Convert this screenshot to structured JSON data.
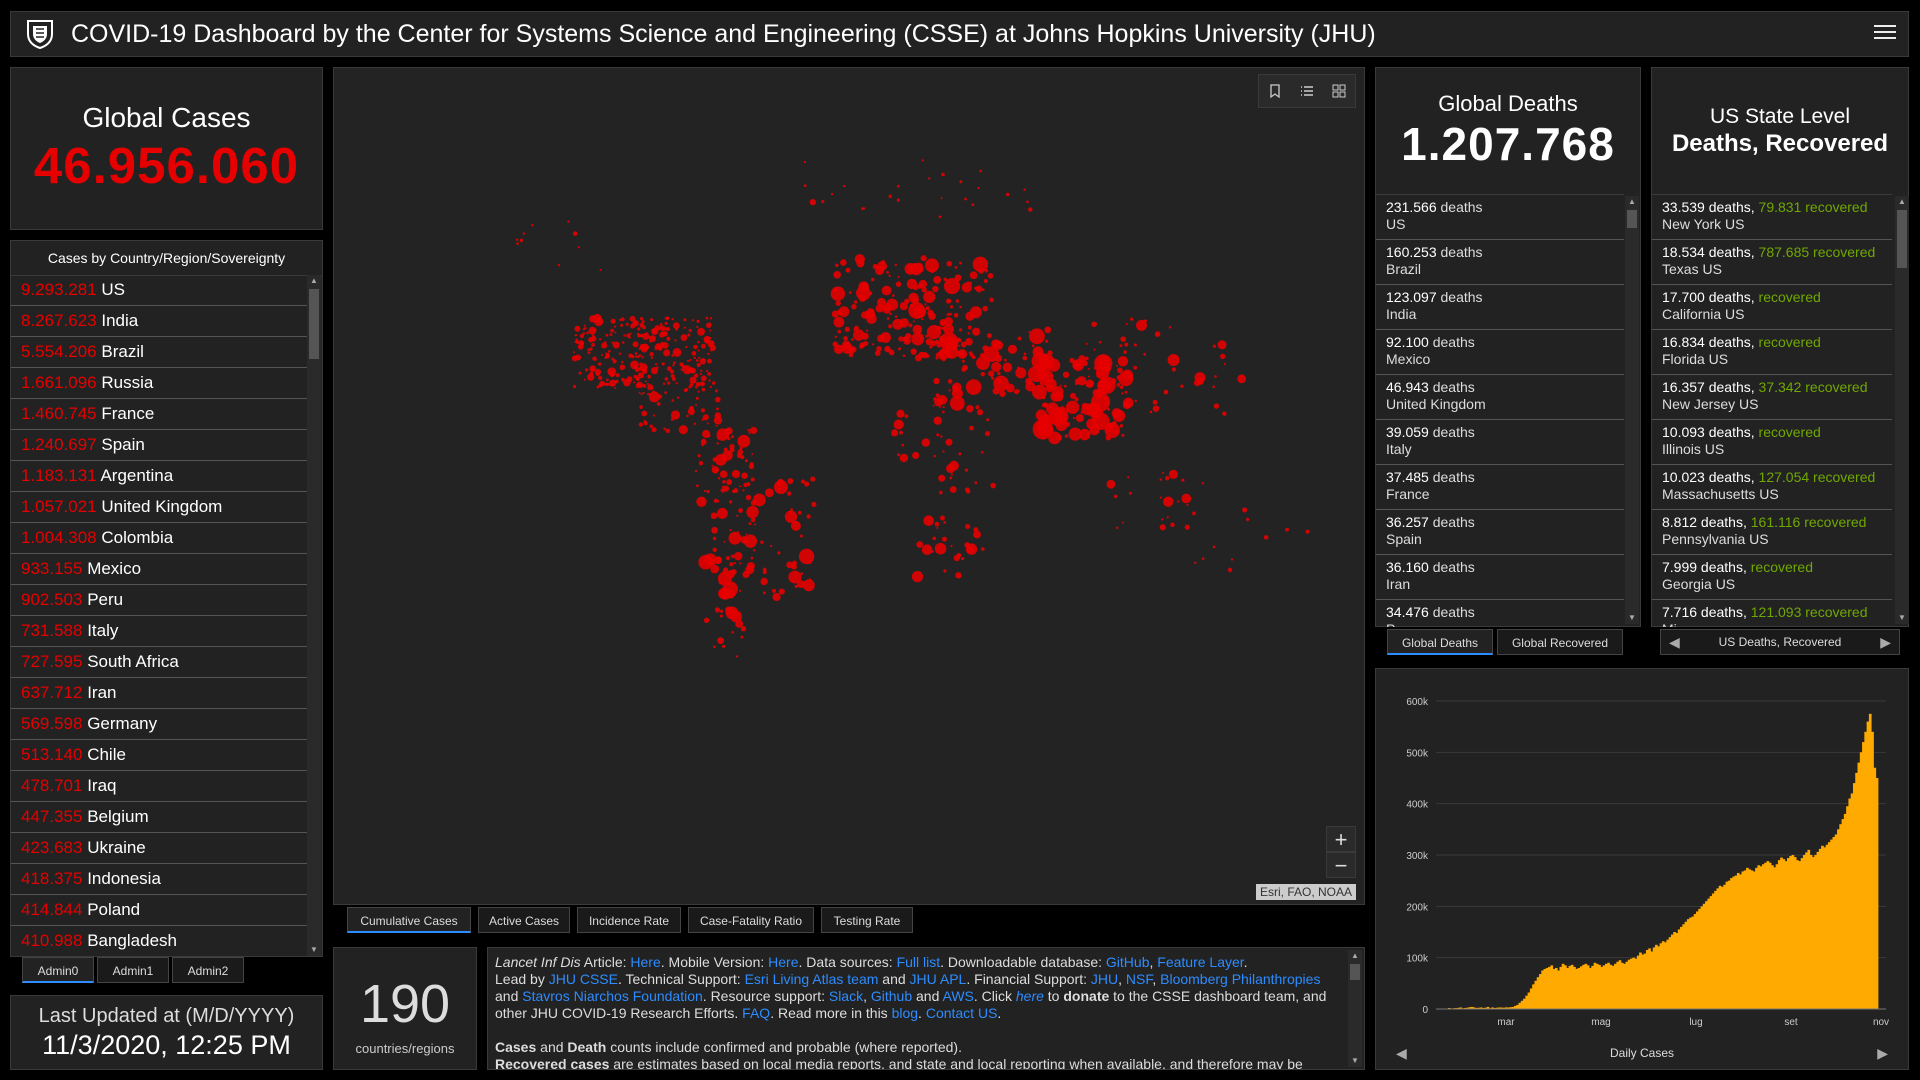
{
  "header": {
    "title": "COVID-19 Dashboard by the Center for Systems Science and Engineering (CSSE) at Johns Hopkins University (JHU)"
  },
  "global_cases": {
    "title": "Global Cases",
    "value": "46.956.060"
  },
  "country_list": {
    "heading": "Cases by Country/Region/Sovereignty",
    "rows": [
      {
        "num": "9.293.281",
        "name": "US"
      },
      {
        "num": "8.267.623",
        "name": "India"
      },
      {
        "num": "5.554.206",
        "name": "Brazil"
      },
      {
        "num": "1.661.096",
        "name": "Russia"
      },
      {
        "num": "1.460.745",
        "name": "France"
      },
      {
        "num": "1.240.697",
        "name": "Spain"
      },
      {
        "num": "1.183.131",
        "name": "Argentina"
      },
      {
        "num": "1.057.021",
        "name": "United Kingdom"
      },
      {
        "num": "1.004.308",
        "name": "Colombia"
      },
      {
        "num": "933.155",
        "name": "Mexico"
      },
      {
        "num": "902.503",
        "name": "Peru"
      },
      {
        "num": "731.588",
        "name": "Italy"
      },
      {
        "num": "727.595",
        "name": "South Africa"
      },
      {
        "num": "637.712",
        "name": "Iran"
      },
      {
        "num": "569.598",
        "name": "Germany"
      },
      {
        "num": "513.140",
        "name": "Chile"
      },
      {
        "num": "478.701",
        "name": "Iraq"
      },
      {
        "num": "447.355",
        "name": "Belgium"
      },
      {
        "num": "423.683",
        "name": "Ukraine"
      },
      {
        "num": "418.375",
        "name": "Indonesia"
      },
      {
        "num": "414.844",
        "name": "Poland"
      },
      {
        "num": "410.988",
        "name": "Bangladesh"
      }
    ]
  },
  "admin_tabs": [
    "Admin0",
    "Admin1",
    "Admin2"
  ],
  "last_updated": {
    "label": "Last Updated at (M/D/YYYY)",
    "value": "11/3/2020, 12:25 PM"
  },
  "map": {
    "attribution": "Esri, FAO, NOAA",
    "tabs": [
      "Cumulative Cases",
      "Active Cases",
      "Incidence Rate",
      "Case-Fatality Ratio",
      "Testing Rate"
    ],
    "zoom_in": "+",
    "zoom_out": "−",
    "dot_color": "#e60000"
  },
  "countries_count": {
    "value": "190",
    "label": "countries/regions"
  },
  "info": {
    "l1_a": "Lancet Inf Dis",
    "l1_b": " Article: ",
    "l1_link1": "Here",
    "l1_c": ". Mobile Version: ",
    "l1_link2": "Here",
    "l1_d": ". Data sources: ",
    "l1_link3": "Full list",
    "l1_e": ". Downloadable database: ",
    "l1_link4": "GitHub",
    "l1_f": ", ",
    "l1_link5": "Feature Layer",
    "l1_g": ".",
    "l2_a": "Lead by ",
    "l2_link1": "JHU CSSE",
    "l2_b": ". Technical Support: ",
    "l2_link2": "Esri Living Atlas team",
    "l2_c": " and ",
    "l2_link3": "JHU APL",
    "l2_d": ". Financial Support: ",
    "l2_link4": "JHU",
    "l2_e": ", ",
    "l2_link5": "NSF",
    "l2_f": ", ",
    "l2_link6": "Bloomberg Philanthropies",
    "l3_a": "and ",
    "l3_link1": "Stavros Niarchos Foundation",
    "l3_b": ". Resource support: ",
    "l3_link2": "Slack",
    "l3_c": ", ",
    "l3_link3": "Github",
    "l3_d": " and ",
    "l3_link4": "AWS",
    "l3_e": ". Click ",
    "l3_link5": "here",
    "l3_f": " to ",
    "l3_g": "donate",
    "l3_h": " to the CSSE dashboard team, and",
    "l4_a": "other JHU COVID-19 Research Efforts. ",
    "l4_link1": "FAQ",
    "l4_b": ". Read more in this ",
    "l4_link2": "blog",
    "l4_c": ". ",
    "l4_link3": "Contact US",
    "l4_d": ".",
    "l5_a": "Cases",
    "l5_b": " and ",
    "l5_c": "Death",
    "l5_d": " counts include confirmed and probable (where reported).",
    "l6_a": "Recovered cases",
    "l6_b": " are estimates based on local media reports, and state and local reporting when available, and therefore may be"
  },
  "global_deaths": {
    "title": "Global Deaths",
    "value": "1.207.768",
    "rows": [
      {
        "num": "231.566",
        "unit": " deaths",
        "name": "US"
      },
      {
        "num": "160.253",
        "unit": " deaths",
        "name": "Brazil"
      },
      {
        "num": "123.097",
        "unit": " deaths",
        "name": "India"
      },
      {
        "num": "92.100",
        "unit": " deaths",
        "name": "Mexico"
      },
      {
        "num": "46.943",
        "unit": " deaths",
        "name": "United Kingdom"
      },
      {
        "num": "39.059",
        "unit": " deaths",
        "name": "Italy"
      },
      {
        "num": "37.485",
        "unit": " deaths",
        "name": "France"
      },
      {
        "num": "36.257",
        "unit": " deaths",
        "name": "Spain"
      },
      {
        "num": "36.160",
        "unit": " deaths",
        "name": "Iran"
      },
      {
        "num": "34.476",
        "unit": " deaths",
        "name": "P..."
      }
    ],
    "tabs": [
      "Global Deaths",
      "Global Recovered"
    ]
  },
  "us_state": {
    "title1": "US State Level",
    "title2": "Deaths, Recovered",
    "rows": [
      {
        "deaths": "33.539 deaths,",
        "recovered": "79.831",
        "rlabel": " recovered",
        "name": "New York US"
      },
      {
        "deaths": "18.534 deaths,",
        "recovered": "787.685",
        "rlabel": " recovered",
        "name": "Texas US"
      },
      {
        "deaths": "17.700 deaths,",
        "recovered": "",
        "rlabel": " recovered",
        "name": "California US"
      },
      {
        "deaths": "16.834 deaths,",
        "recovered": "",
        "rlabel": " recovered",
        "name": "Florida US"
      },
      {
        "deaths": "16.357 deaths,",
        "recovered": "37.342",
        "rlabel": " recovered",
        "name": "New Jersey US"
      },
      {
        "deaths": "10.093 deaths,",
        "recovered": "",
        "rlabel": " recovered",
        "name": "Illinois US"
      },
      {
        "deaths": "10.023 deaths,",
        "recovered": "127.054",
        "rlabel": " recovered",
        "name": "Massachusetts US"
      },
      {
        "deaths": "8.812 deaths,",
        "recovered": "161.116",
        "rlabel": " recovered",
        "name": "Pennsylvania US"
      },
      {
        "deaths": "7.999 deaths,",
        "recovered": "",
        "rlabel": " recovered",
        "name": "Georgia US"
      },
      {
        "deaths": "7.716 deaths,",
        "recovered": "121.093",
        "rlabel": " recovered",
        "name": "Mi..."
      }
    ],
    "nav_label": "US Deaths, Recovered"
  },
  "daily_chart": {
    "nav_label": "Daily Cases",
    "bar_color": "#ffaa00"
  },
  "chart_data": {
    "type": "bar",
    "title": "Daily Cases",
    "ylabel": "",
    "xlabel": "",
    "ylim": [
      0,
      600000
    ],
    "yticks": [
      "0",
      "100k",
      "200k",
      "300k",
      "400k",
      "500k",
      "600k"
    ],
    "xticks": [
      "mar",
      "mag",
      "lug",
      "set",
      "nov"
    ],
    "grid": true,
    "series": [
      {
        "values": [
          2000,
          1000,
          1500,
          1800,
          2200,
          3000,
          1500,
          2000,
          2500,
          3500,
          4000,
          3000,
          2000,
          2500,
          3000,
          2000,
          2500,
          4000,
          1500,
          3000,
          2000,
          2500,
          3000,
          2800,
          2500,
          3200,
          2900,
          3500,
          4000,
          6000,
          8000,
          12000,
          16000,
          20000,
          26000,
          32000,
          40000,
          48000,
          55000,
          62000,
          68000,
          75000,
          78000,
          80000,
          82000,
          85000,
          78000,
          80000,
          75000,
          82000,
          88000,
          85000,
          80000,
          84000,
          86000,
          82000,
          78000,
          80000,
          83000,
          86000,
          88000,
          85000,
          80000,
          84000,
          90000,
          88000,
          86000,
          82000,
          85000,
          88000,
          90000,
          86000,
          84000,
          88000,
          92000,
          95000,
          90000,
          88000,
          92000,
          96000,
          98000,
          100000,
          98000,
          104000,
          110000,
          106000,
          108000,
          115000,
          118000,
          112000,
          120000,
          125000,
          122000,
          128000,
          132000,
          130000,
          135000,
          140000,
          145000,
          150000,
          148000,
          155000,
          160000,
          165000,
          170000,
          175000,
          178000,
          180000,
          185000,
          190000,
          195000,
          200000,
          205000,
          210000,
          215000,
          220000,
          225000,
          230000,
          235000,
          240000,
          238000,
          242000,
          248000,
          250000,
          255000,
          258000,
          260000,
          265000,
          262000,
          268000,
          270000,
          275000,
          272000,
          270000,
          268000,
          275000,
          280000,
          278000,
          282000,
          285000,
          288000,
          285000,
          280000,
          276000,
          282000,
          290000,
          295000,
          292000,
          288000,
          294000,
          298000,
          300000,
          296000,
          290000,
          288000,
          294000,
          300000,
          305000,
          310000,
          300000,
          296000,
          300000,
          306000,
          312000,
          318000,
          315000,
          320000,
          325000,
          330000,
          335000,
          340000,
          350000,
          360000,
          370000,
          380000,
          395000,
          410000,
          420000,
          440000,
          460000,
          480000,
          500000,
          520000,
          540000,
          560000,
          575000,
          540000,
          470000,
          450000
        ]
      }
    ]
  }
}
